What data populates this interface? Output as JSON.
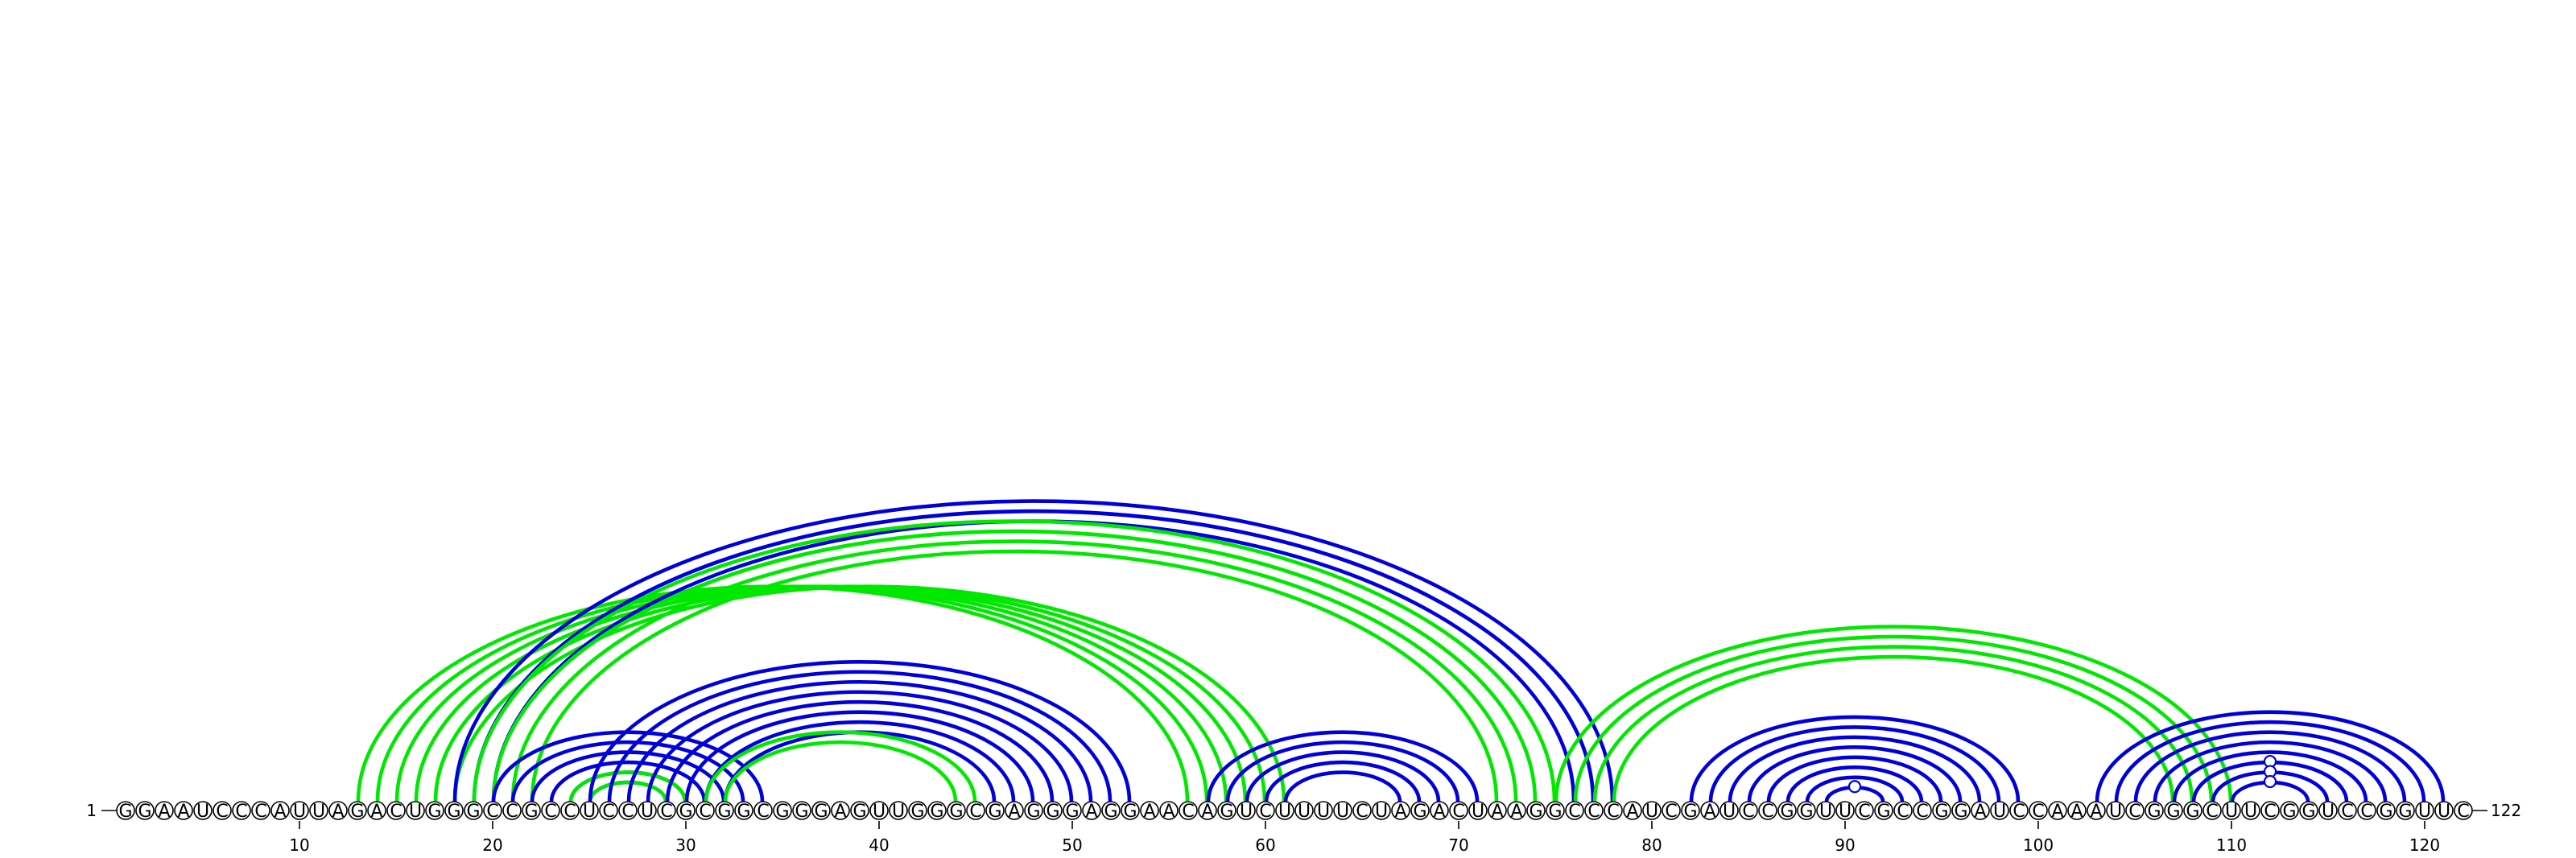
{
  "sequence": "GGAAUCCCAUUAGACUGGGCCGCCUCCUCGCGGCGGGAGUUGGGCGAGGGAGGAACAGUCUUUUCUAGACUAAGGCCCAUCGAUCCGGUUCGCCGGAUCCAAAUCGGGCUUCGGUCCGGUUC",
  "start_label": "1",
  "end_label": "122",
  "ticks": [
    10,
    20,
    30,
    40,
    50,
    60,
    70,
    80,
    90,
    100,
    110,
    120
  ],
  "colors": {
    "blue": "#0000dd",
    "green": "#00e800"
  },
  "arcs": [
    {
      "i": 13,
      "j": 56,
      "color": "green"
    },
    {
      "i": 14,
      "j": 57,
      "color": "green"
    },
    {
      "i": 15,
      "j": 58,
      "color": "green"
    },
    {
      "i": 16,
      "j": 59,
      "color": "green"
    },
    {
      "i": 17,
      "j": 60,
      "color": "green"
    },
    {
      "i": 18,
      "j": 61,
      "color": "green"
    },
    {
      "i": 18,
      "j": 78,
      "color": "blue"
    },
    {
      "i": 19,
      "j": 77,
      "color": "blue"
    },
    {
      "i": 20,
      "j": 76,
      "color": "blue"
    },
    {
      "i": 19,
      "j": 75,
      "color": "green"
    },
    {
      "i": 20,
      "j": 74,
      "color": "green"
    },
    {
      "i": 21,
      "j": 73,
      "color": "green"
    },
    {
      "i": 22,
      "j": 72,
      "color": "green"
    },
    {
      "i": 20,
      "j": 34,
      "color": "blue"
    },
    {
      "i": 21,
      "j": 33,
      "color": "blue"
    },
    {
      "i": 22,
      "j": 32,
      "color": "blue"
    },
    {
      "i": 23,
      "j": 31,
      "color": "blue"
    },
    {
      "i": 24,
      "j": 30,
      "color": "blue"
    },
    {
      "i": 25,
      "j": 29,
      "color": "blue"
    },
    {
      "i": 24,
      "j": 30,
      "color": "green"
    },
    {
      "i": 25,
      "j": 29,
      "color": "green"
    },
    {
      "i": 25,
      "j": 53,
      "color": "blue"
    },
    {
      "i": 26,
      "j": 52,
      "color": "blue"
    },
    {
      "i": 27,
      "j": 51,
      "color": "blue"
    },
    {
      "i": 28,
      "j": 50,
      "color": "blue"
    },
    {
      "i": 29,
      "j": 49,
      "color": "blue"
    },
    {
      "i": 30,
      "j": 48,
      "color": "blue"
    },
    {
      "i": 31,
      "j": 47,
      "color": "blue"
    },
    {
      "i": 32,
      "j": 46,
      "color": "blue"
    },
    {
      "i": 31,
      "j": 45,
      "color": "green"
    },
    {
      "i": 32,
      "j": 44,
      "color": "green"
    },
    {
      "i": 57,
      "j": 71,
      "color": "blue"
    },
    {
      "i": 58,
      "j": 70,
      "color": "blue"
    },
    {
      "i": 59,
      "j": 69,
      "color": "blue"
    },
    {
      "i": 60,
      "j": 68,
      "color": "blue"
    },
    {
      "i": 61,
      "j": 67,
      "color": "blue"
    },
    {
      "i": 75,
      "j": 110,
      "color": "green"
    },
    {
      "i": 76,
      "j": 109,
      "color": "green"
    },
    {
      "i": 77,
      "j": 108,
      "color": "green"
    },
    {
      "i": 78,
      "j": 107,
      "color": "green"
    },
    {
      "i": 82,
      "j": 99,
      "color": "blue"
    },
    {
      "i": 83,
      "j": 98,
      "color": "blue"
    },
    {
      "i": 84,
      "j": 97,
      "color": "blue"
    },
    {
      "i": 85,
      "j": 96,
      "color": "blue"
    },
    {
      "i": 86,
      "j": 95,
      "color": "blue"
    },
    {
      "i": 87,
      "j": 94,
      "color": "blue"
    },
    {
      "i": 88,
      "j": 93,
      "color": "blue"
    },
    {
      "i": 89,
      "j": 92,
      "color": "blue"
    },
    {
      "i": 103,
      "j": 121,
      "color": "blue"
    },
    {
      "i": 104,
      "j": 120,
      "color": "blue"
    },
    {
      "i": 105,
      "j": 119,
      "color": "blue"
    },
    {
      "i": 106,
      "j": 118,
      "color": "blue"
    },
    {
      "i": 107,
      "j": 117,
      "color": "blue"
    },
    {
      "i": 108,
      "j": 116,
      "color": "blue"
    },
    {
      "i": 109,
      "j": 115,
      "color": "blue"
    },
    {
      "i": 110,
      "j": 114,
      "color": "blue"
    }
  ],
  "markers": [
    {
      "i": 89,
      "j": 92,
      "color": "blue"
    },
    {
      "i": 108,
      "j": 116,
      "color": "blue"
    },
    {
      "i": 109,
      "j": 115,
      "color": "blue"
    },
    {
      "i": 110,
      "j": 114,
      "color": "blue"
    }
  ]
}
